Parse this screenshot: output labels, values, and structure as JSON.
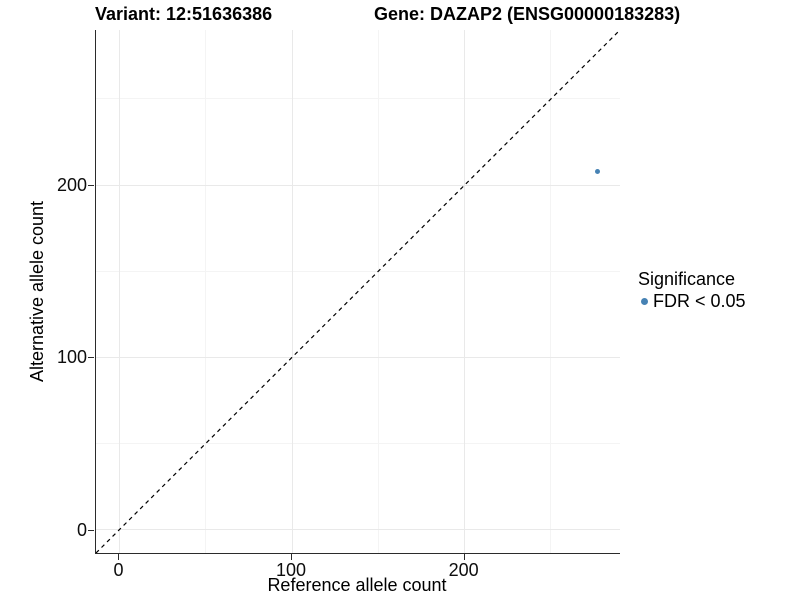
{
  "chart_data": {
    "type": "scatter",
    "title_left": "Variant: 12:51636386",
    "title_right": "Gene: DAZAP2 (ENSG00000183283)",
    "xlabel": "Reference allele count",
    "ylabel": "Alternative allele count",
    "xlim": [
      -13.6,
      290
    ],
    "ylim": [
      -13.6,
      290
    ],
    "x_major_ticks": [
      0,
      100,
      200
    ],
    "y_major_ticks": [
      0,
      100,
      200
    ],
    "x_minor_ticks": [
      50,
      150,
      250
    ],
    "y_minor_ticks": [
      50,
      150,
      250
    ],
    "grid": true,
    "legend_position": "right",
    "reference_line": {
      "type": "identity y = x",
      "style": "dashed",
      "color": "#000000"
    },
    "series": [
      {
        "name": "FDR < 0.05",
        "color": "#4682b4",
        "points": [
          {
            "x": 277,
            "y": 208
          }
        ]
      }
    ],
    "legend": {
      "title": "Significance",
      "items": [
        {
          "label": "FDR < 0.05",
          "color": "#4682b4"
        }
      ]
    }
  },
  "colors": {
    "point": "#4682b4",
    "axis_line": "#2b2b2b",
    "grid_major": "#e9e9e9",
    "grid_minor": "#f4f4f4",
    "background": "#ffffff"
  }
}
